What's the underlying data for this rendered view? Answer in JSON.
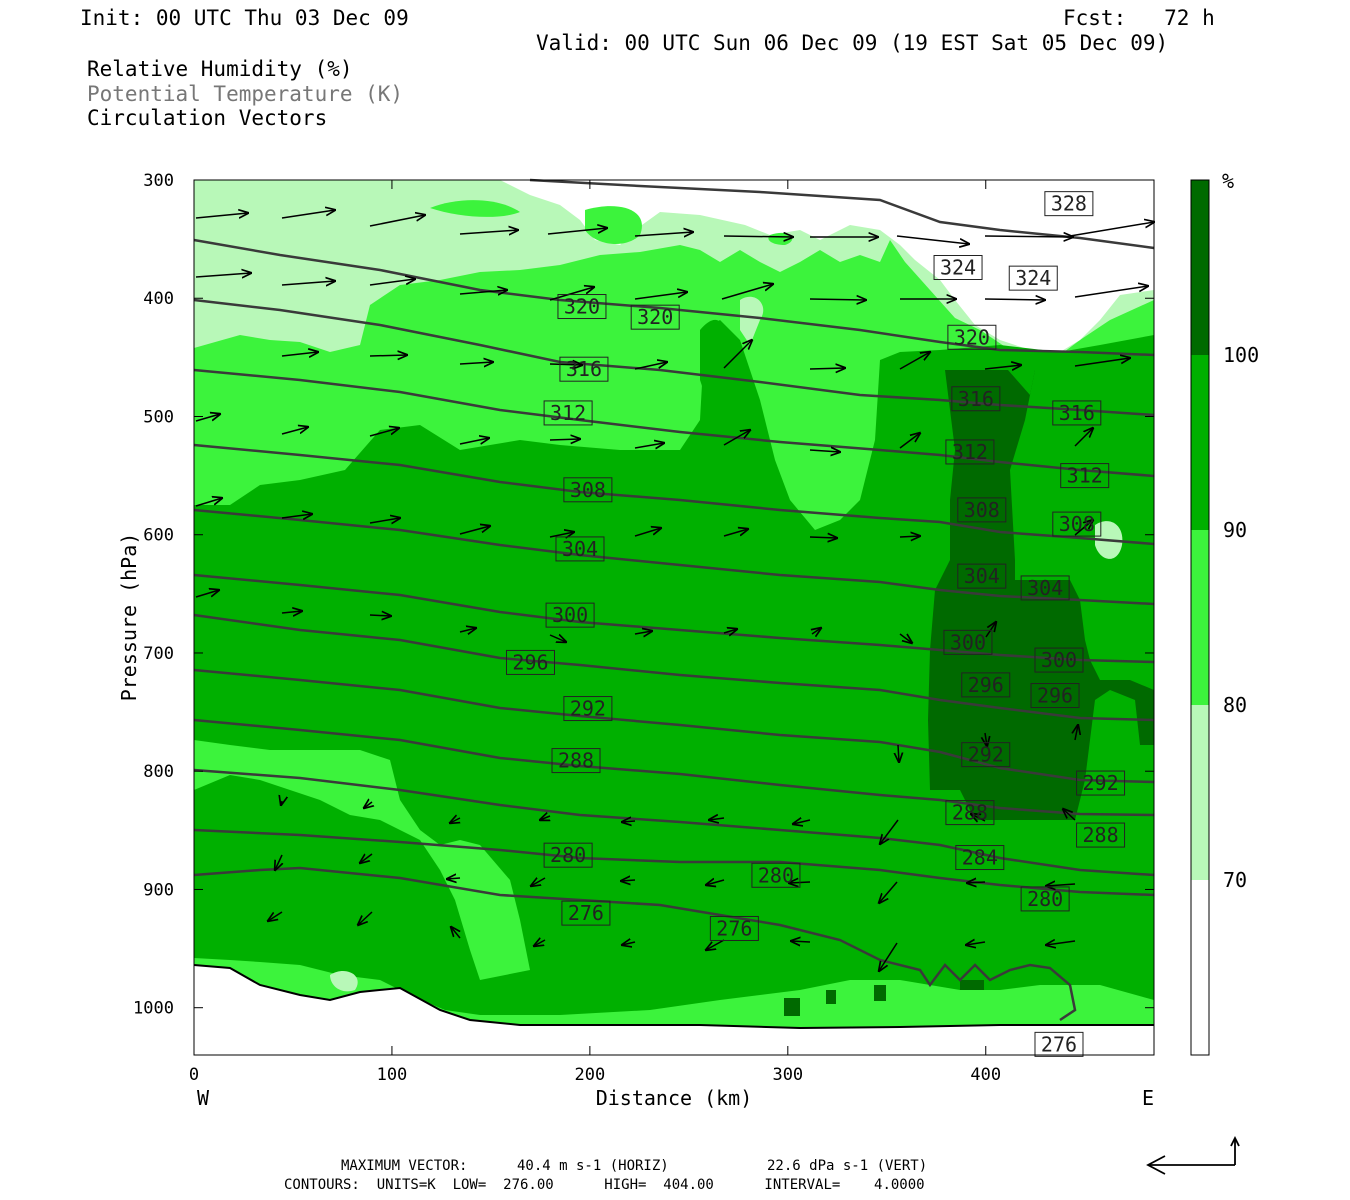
{
  "header": {
    "init": "Init: 00 UTC Thu 03 Dec 09",
    "fcst": "Fcst:   72 h",
    "valid": "Valid: 00 UTC Sun 06 Dec 09 (19 EST Sat 05 Dec 09)",
    "field1": "Relative Humidity (%)",
    "field2": "Potential Temperature (K)",
    "field3": "Circulation Vectors"
  },
  "footer": {
    "max_vector_label": "MAXIMUM VECTOR:",
    "horiz": "40.4 m s-1 (HORIZ)",
    "vert": "22.6 dPa s-1 (VERT)",
    "contours": "CONTOURS:  UNITS=K  LOW=  276.00      HIGH=  404.00      INTERVAL=    4.0000"
  },
  "chart_data": {
    "type": "heatmap",
    "xlabel": "Distance (km)",
    "ylabel": "Pressure (hPa)",
    "xlim": [
      0,
      485
    ],
    "ylim": [
      300,
      1040
    ],
    "x_ticks": [
      "0",
      "100",
      "200",
      "300",
      "400"
    ],
    "y_ticks": [
      "300",
      "400",
      "500",
      "600",
      "700",
      "800",
      "900",
      "1000"
    ],
    "x_left_label": "W",
    "x_right_label": "E",
    "colorbar": {
      "unit": "%",
      "levels": [
        "100",
        "90",
        "80",
        "70"
      ],
      "colors": [
        "#006a00",
        "#00b000",
        "#3cf33c",
        "#b8f8b8",
        "#ffffff"
      ]
    },
    "contour_labels": [
      {
        "text": "328",
        "x": 442,
        "y": 320
      },
      {
        "text": "324",
        "x": 386,
        "y": 374
      },
      {
        "text": "324",
        "x": 424,
        "y": 383
      },
      {
        "text": "320",
        "x": 196,
        "y": 407
      },
      {
        "text": "320",
        "x": 233,
        "y": 416
      },
      {
        "text": "320",
        "x": 393,
        "y": 433
      },
      {
        "text": "316",
        "x": 197,
        "y": 460
      },
      {
        "text": "316",
        "x": 395,
        "y": 485
      },
      {
        "text": "316",
        "x": 446,
        "y": 497
      },
      {
        "text": "312",
        "x": 189,
        "y": 497
      },
      {
        "text": "312",
        "x": 392,
        "y": 530
      },
      {
        "text": "312",
        "x": 450,
        "y": 550
      },
      {
        "text": "308",
        "x": 199,
        "y": 562
      },
      {
        "text": "308",
        "x": 398,
        "y": 579
      },
      {
        "text": "308",
        "x": 446,
        "y": 591
      },
      {
        "text": "304",
        "x": 195,
        "y": 612
      },
      {
        "text": "304",
        "x": 398,
        "y": 635
      },
      {
        "text": "304",
        "x": 430,
        "y": 645
      },
      {
        "text": "300",
        "x": 190,
        "y": 668
      },
      {
        "text": "300",
        "x": 391,
        "y": 691
      },
      {
        "text": "300",
        "x": 437,
        "y": 706
      },
      {
        "text": "296",
        "x": 170,
        "y": 708
      },
      {
        "text": "296",
        "x": 400,
        "y": 727
      },
      {
        "text": "296",
        "x": 435,
        "y": 736
      },
      {
        "text": "292",
        "x": 199,
        "y": 747
      },
      {
        "text": "292",
        "x": 400,
        "y": 786
      },
      {
        "text": "292",
        "x": 458,
        "y": 810
      },
      {
        "text": "288",
        "x": 193,
        "y": 791
      },
      {
        "text": "288",
        "x": 392,
        "y": 835
      },
      {
        "text": "288",
        "x": 458,
        "y": 854
      },
      {
        "text": "284",
        "x": 397,
        "y": 873
      },
      {
        "text": "280",
        "x": 189,
        "y": 871
      },
      {
        "text": "280",
        "x": 294,
        "y": 888
      },
      {
        "text": "280",
        "x": 430,
        "y": 908
      },
      {
        "text": "276",
        "x": 198,
        "y": 920
      },
      {
        "text": "276",
        "x": 273,
        "y": 933
      },
      {
        "text": "276",
        "x": 437,
        "y": 1031
      }
    ]
  }
}
